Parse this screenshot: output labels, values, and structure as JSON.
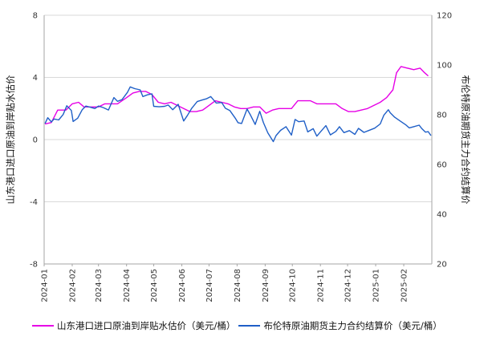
{
  "chart_data": {
    "type": "line",
    "x_ticks": [
      "2024-01",
      "2024-02",
      "2024-03",
      "2024-04",
      "2024-05",
      "2024-06",
      "2024-07",
      "2024-08",
      "2024-09",
      "2024-10",
      "2024-11",
      "2024-12",
      "2025-01",
      "2025-02"
    ],
    "y_left": {
      "label": "山东港口进口原油到岸贴水估价",
      "ylim": [
        -8,
        8
      ],
      "ticks": [
        "8",
        "4",
        "0",
        "-4",
        "-8"
      ]
    },
    "y_right": {
      "label": "布伦特原油期货主力合约结算价",
      "ylim": [
        20,
        120
      ],
      "ticks": [
        "120",
        "100",
        "80",
        "60",
        "40",
        "20"
      ]
    },
    "grid": "horizontal",
    "legend_position": "bottom",
    "series": [
      {
        "name": "山东港口进口原油到岸贴水估价（美元/桶）",
        "axis": "left",
        "color": "#e600e6",
        "points": [
          [
            "2024-01-02",
            1.0
          ],
          [
            "2024-01-09",
            1.1
          ],
          [
            "2024-01-16",
            1.9
          ],
          [
            "2024-01-25",
            1.9
          ],
          [
            "2024-02-01",
            2.3
          ],
          [
            "2024-02-08",
            2.4
          ],
          [
            "2024-02-14",
            2.1
          ],
          [
            "2024-02-22",
            2.1
          ],
          [
            "2024-03-01",
            2.1
          ],
          [
            "2024-03-08",
            2.3
          ],
          [
            "2024-03-15",
            2.3
          ],
          [
            "2024-03-22",
            2.3
          ],
          [
            "2024-04-01",
            2.7
          ],
          [
            "2024-04-08",
            3.0
          ],
          [
            "2024-04-15",
            3.1
          ],
          [
            "2024-04-22",
            3.1
          ],
          [
            "2024-04-29",
            2.9
          ],
          [
            "2024-05-06",
            2.4
          ],
          [
            "2024-05-13",
            2.3
          ],
          [
            "2024-05-20",
            2.4
          ],
          [
            "2024-05-27",
            2.2
          ],
          [
            "2024-06-03",
            2.0
          ],
          [
            "2024-06-10",
            1.8
          ],
          [
            "2024-06-17",
            1.8
          ],
          [
            "2024-06-24",
            1.9
          ],
          [
            "2024-07-01",
            2.2
          ],
          [
            "2024-07-08",
            2.5
          ],
          [
            "2024-07-15",
            2.4
          ],
          [
            "2024-07-22",
            2.3
          ],
          [
            "2024-07-29",
            2.1
          ],
          [
            "2024-08-05",
            2.0
          ],
          [
            "2024-08-12",
            2.0
          ],
          [
            "2024-08-19",
            2.1
          ],
          [
            "2024-08-26",
            2.1
          ],
          [
            "2024-09-02",
            1.7
          ],
          [
            "2024-09-09",
            1.9
          ],
          [
            "2024-09-16",
            2.0
          ],
          [
            "2024-09-23",
            2.0
          ],
          [
            "2024-09-30",
            2.0
          ],
          [
            "2024-10-07",
            2.5
          ],
          [
            "2024-10-14",
            2.5
          ],
          [
            "2024-10-21",
            2.5
          ],
          [
            "2024-10-28",
            2.3
          ],
          [
            "2024-11-04",
            2.3
          ],
          [
            "2024-11-11",
            2.3
          ],
          [
            "2024-11-18",
            2.3
          ],
          [
            "2024-11-25",
            2.0
          ],
          [
            "2024-12-02",
            1.8
          ],
          [
            "2024-12-09",
            1.8
          ],
          [
            "2024-12-16",
            1.9
          ],
          [
            "2024-12-23",
            2.0
          ],
          [
            "2024-12-30",
            2.2
          ],
          [
            "2025-01-06",
            2.4
          ],
          [
            "2025-01-13",
            2.7
          ],
          [
            "2025-01-20",
            3.2
          ],
          [
            "2025-01-24",
            4.3
          ],
          [
            "2025-01-29",
            4.7
          ],
          [
            "2025-02-05",
            4.6
          ],
          [
            "2025-02-12",
            4.5
          ],
          [
            "2025-02-19",
            4.6
          ],
          [
            "2025-02-24",
            4.3
          ],
          [
            "2025-02-28",
            4.1
          ]
        ]
      },
      {
        "name": "布伦特原油期货主力合约结算价（美元/桶）",
        "axis": "right",
        "color": "#1f5fc7",
        "points": [
          [
            "2024-01-02",
            76.5
          ],
          [
            "2024-01-05",
            78.8
          ],
          [
            "2024-01-09",
            77.1
          ],
          [
            "2024-01-12",
            78.3
          ],
          [
            "2024-01-17",
            77.9
          ],
          [
            "2024-01-22",
            80.1
          ],
          [
            "2024-01-26",
            83.6
          ],
          [
            "2024-01-31",
            81.7
          ],
          [
            "2024-02-02",
            77.3
          ],
          [
            "2024-02-07",
            78.6
          ],
          [
            "2024-02-12",
            82.0
          ],
          [
            "2024-02-16",
            83.5
          ],
          [
            "2024-02-21",
            83.0
          ],
          [
            "2024-02-26",
            82.5
          ],
          [
            "2024-03-01",
            83.5
          ],
          [
            "2024-03-06",
            82.9
          ],
          [
            "2024-03-12",
            81.9
          ],
          [
            "2024-03-18",
            86.9
          ],
          [
            "2024-03-22",
            85.4
          ],
          [
            "2024-03-27",
            86.1
          ],
          [
            "2024-04-02",
            89.0
          ],
          [
            "2024-04-05",
            91.2
          ],
          [
            "2024-04-10",
            90.5
          ],
          [
            "2024-04-16",
            90.0
          ],
          [
            "2024-04-19",
            87.3
          ],
          [
            "2024-04-24",
            88.0
          ],
          [
            "2024-04-29",
            88.4
          ],
          [
            "2024-05-01",
            83.4
          ],
          [
            "2024-05-07",
            83.2
          ],
          [
            "2024-05-13",
            83.4
          ],
          [
            "2024-05-17",
            83.9
          ],
          [
            "2024-05-22",
            82.0
          ],
          [
            "2024-05-28",
            84.2
          ],
          [
            "2024-06-03",
            77.5
          ],
          [
            "2024-06-07",
            79.6
          ],
          [
            "2024-06-12",
            82.6
          ],
          [
            "2024-06-18",
            85.3
          ],
          [
            "2024-06-24",
            86.0
          ],
          [
            "2024-06-28",
            86.4
          ],
          [
            "2024-07-03",
            87.3
          ],
          [
            "2024-07-09",
            84.7
          ],
          [
            "2024-07-15",
            84.9
          ],
          [
            "2024-07-19",
            82.6
          ],
          [
            "2024-07-24",
            81.7
          ],
          [
            "2024-07-30",
            78.6
          ],
          [
            "2024-08-02",
            76.8
          ],
          [
            "2024-08-06",
            76.5
          ],
          [
            "2024-08-12",
            82.3
          ],
          [
            "2024-08-16",
            79.7
          ],
          [
            "2024-08-21",
            76.1
          ],
          [
            "2024-08-26",
            81.4
          ],
          [
            "2024-08-30",
            76.9
          ],
          [
            "2024-09-04",
            72.7
          ],
          [
            "2024-09-10",
            69.2
          ],
          [
            "2024-09-13",
            71.6
          ],
          [
            "2024-09-18",
            73.7
          ],
          [
            "2024-09-24",
            75.2
          ],
          [
            "2024-09-30",
            71.8
          ],
          [
            "2024-10-04",
            78.1
          ],
          [
            "2024-10-08",
            77.2
          ],
          [
            "2024-10-14",
            77.5
          ],
          [
            "2024-10-18",
            73.1
          ],
          [
            "2024-10-24",
            74.4
          ],
          [
            "2024-10-28",
            71.4
          ],
          [
            "2024-11-01",
            73.1
          ],
          [
            "2024-11-07",
            75.6
          ],
          [
            "2024-11-12",
            71.9
          ],
          [
            "2024-11-18",
            73.3
          ],
          [
            "2024-11-22",
            75.2
          ],
          [
            "2024-11-27",
            72.8
          ],
          [
            "2024-12-03",
            73.6
          ],
          [
            "2024-12-09",
            72.1
          ],
          [
            "2024-12-13",
            74.5
          ],
          [
            "2024-12-19",
            72.9
          ],
          [
            "2024-12-24",
            73.6
          ],
          [
            "2024-12-31",
            74.6
          ],
          [
            "2025-01-06",
            76.3
          ],
          [
            "2025-01-10",
            79.8
          ],
          [
            "2025-01-15",
            82.0
          ],
          [
            "2025-01-17",
            80.8
          ],
          [
            "2025-01-22",
            79.0
          ],
          [
            "2025-01-28",
            77.5
          ],
          [
            "2025-02-03",
            76.0
          ],
          [
            "2025-02-07",
            74.7
          ],
          [
            "2025-02-12",
            75.2
          ],
          [
            "2025-02-18",
            75.8
          ],
          [
            "2025-02-21",
            74.4
          ],
          [
            "2025-02-25",
            73.0
          ],
          [
            "2025-02-28",
            73.2
          ],
          [
            "2025-03-03",
            71.6
          ]
        ]
      }
    ]
  }
}
